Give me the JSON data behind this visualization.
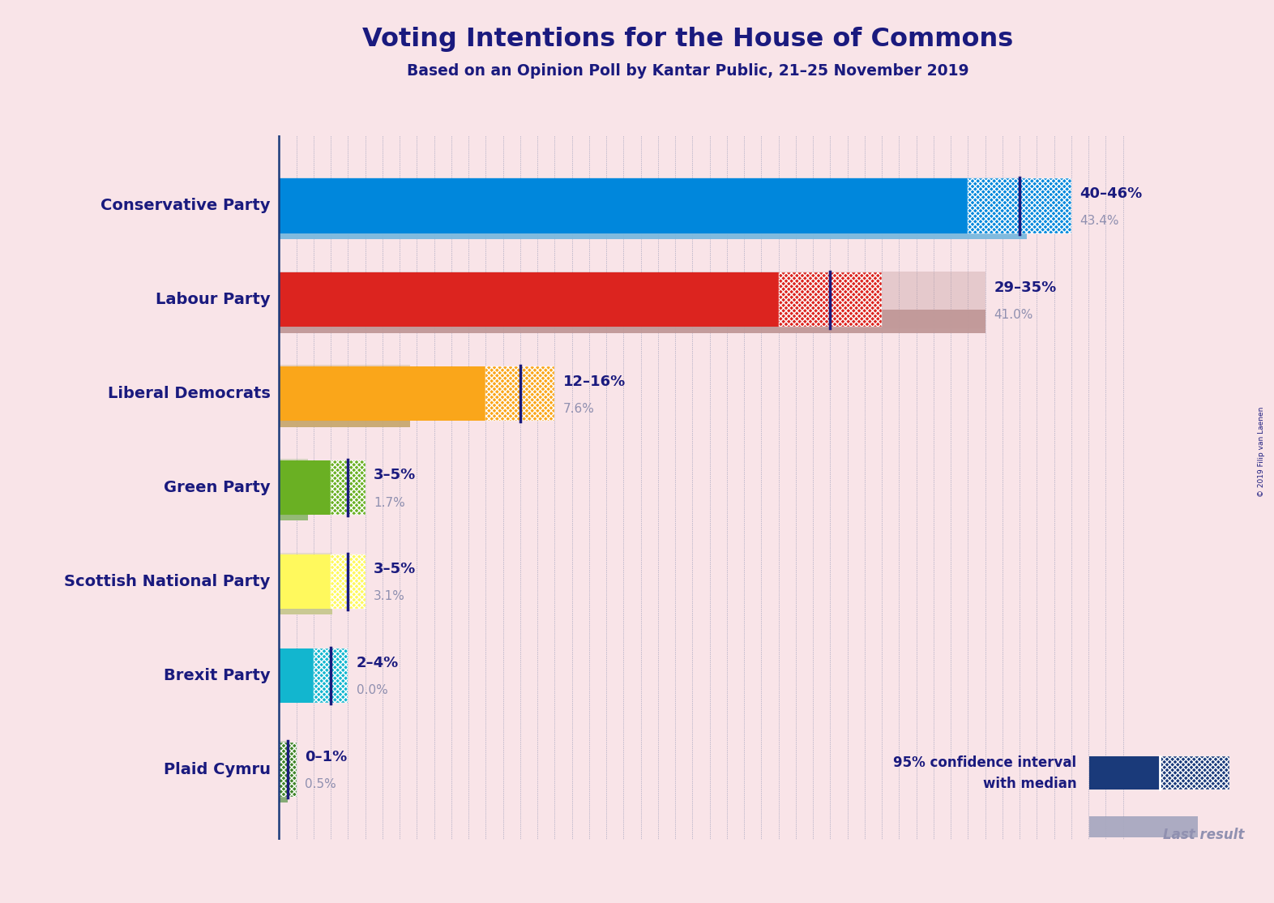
{
  "title": "Voting Intentions for the House of Commons",
  "subtitle": "Based on an Opinion Poll by Kantar Public, 21–25 November 2019",
  "copyright": "© 2019 Filip van Laenen",
  "background_color": "#f9e4e8",
  "title_color": "#1a1a7e",
  "parties": [
    {
      "name": "Conservative Party",
      "ci_low": 40,
      "ci_high": 46,
      "median": 43,
      "last_result": 43.4,
      "color": "#0087dc",
      "last_result_color": "#7ab8de",
      "ci_label": "40–46%",
      "last_label": "43.4%"
    },
    {
      "name": "Labour Party",
      "ci_low": 29,
      "ci_high": 35,
      "median": 32,
      "last_result": 41.0,
      "color": "#dc241f",
      "last_result_color": "#c09898",
      "ci_label": "29–35%",
      "last_label": "41.0%"
    },
    {
      "name": "Liberal Democrats",
      "ci_low": 12,
      "ci_high": 16,
      "median": 14,
      "last_result": 7.6,
      "color": "#FAA61A",
      "last_result_color": "#c8a870",
      "ci_label": "12–16%",
      "last_label": "7.6%"
    },
    {
      "name": "Green Party",
      "ci_low": 3,
      "ci_high": 5,
      "median": 4,
      "last_result": 1.7,
      "color": "#6ab023",
      "last_result_color": "#90b870",
      "ci_label": "3–5%",
      "last_label": "1.7%"
    },
    {
      "name": "Scottish National Party",
      "ci_low": 3,
      "ci_high": 5,
      "median": 4,
      "last_result": 3.1,
      "color": "#FFF95D",
      "last_result_color": "#c8c890",
      "ci_label": "3–5%",
      "last_label": "3.1%"
    },
    {
      "name": "Brexit Party",
      "ci_low": 2,
      "ci_high": 4,
      "median": 3,
      "last_result": 0.0,
      "color": "#12B6CF",
      "last_result_color": "#70c8d0",
      "ci_label": "2–4%",
      "last_label": "0.0%"
    },
    {
      "name": "Plaid Cymru",
      "ci_low": 0,
      "ci_high": 1,
      "median": 0.5,
      "last_result": 0.5,
      "color": "#3F8428",
      "last_result_color": "#80a870",
      "ci_label": "0–1%",
      "last_label": "0.5%"
    }
  ],
  "xmax": 50,
  "legend_ci_color": "#1a3a7a",
  "legend_last_color": "#a8a8c0",
  "grid_color": "#1a3a7a"
}
